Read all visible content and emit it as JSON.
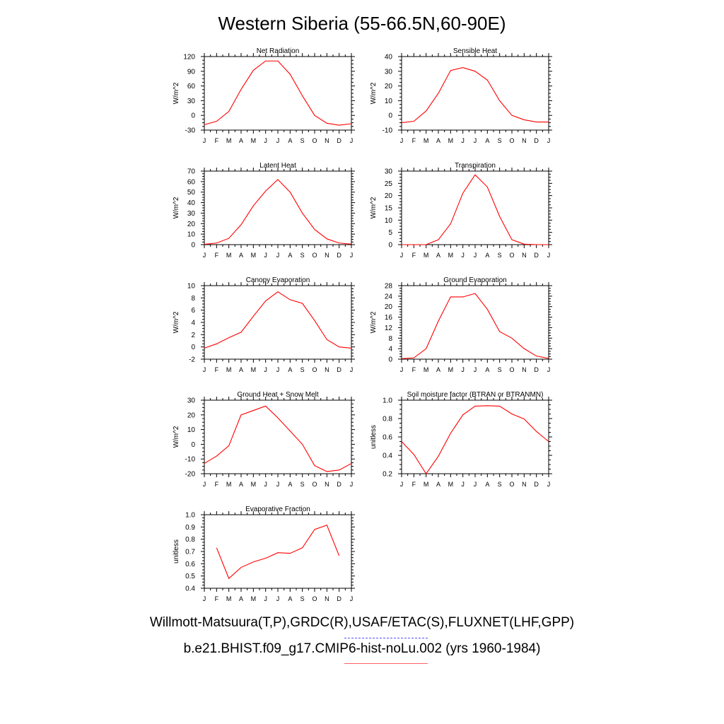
{
  "title": "Western Siberia (55-66.5N,60-90E)",
  "colors": {
    "model": "#ff0000",
    "observed": "#5050ff",
    "axis": "#000000"
  },
  "x_ticks": [
    "J",
    "F",
    "M",
    "A",
    "M",
    "J",
    "J",
    "A",
    "S",
    "O",
    "N",
    "D",
    "J"
  ],
  "legend": {
    "observed": "Willmott-Matsuura(T,P),GRDC(R),USAF/ETAC(S),FLUXNET(LHF,GPP)",
    "model": "b.e21.BHIST.f09_g17.CMIP6-hist-noLu.002 (yrs 1960-1984)"
  },
  "chart_data": [
    {
      "type": "line",
      "title": "Net Radiation",
      "ylabel": "W/m^2",
      "ylim": [
        -30,
        120
      ],
      "yticks": [
        "-30",
        "0",
        "30",
        "60",
        "90",
        "120"
      ],
      "series": [
        {
          "values": [
            -19,
            -12,
            8,
            53,
            92,
            111,
            111,
            84,
            40,
            0,
            -16,
            -20,
            -17
          ]
        }
      ]
    },
    {
      "type": "line",
      "title": "Sensible Heat",
      "ylabel": "W/m^2",
      "ylim": [
        -10,
        40
      ],
      "yticks": [
        "-10",
        "0",
        "10",
        "20",
        "30",
        "40"
      ],
      "series": [
        {
          "values": [
            -5,
            -4,
            3,
            15,
            30.5,
            32.5,
            30,
            24,
            10,
            0,
            -3,
            -4.5,
            -4.5
          ]
        }
      ]
    },
    {
      "type": "line",
      "title": "Latent Heat",
      "ylabel": "W/m^2",
      "ylim": [
        0,
        70
      ],
      "yticks": [
        "0",
        "10",
        "20",
        "30",
        "40",
        "50",
        "60",
        "70"
      ],
      "series": [
        {
          "values": [
            0.3,
            1.5,
            6,
            19,
            37,
            51,
            62,
            50,
            30,
            14.5,
            5.5,
            1.5,
            0.5
          ]
        }
      ]
    },
    {
      "type": "line",
      "title": "Transpiration",
      "ylabel": "W/m^2",
      "ylim": [
        0,
        30
      ],
      "yticks": [
        "0",
        "5",
        "10",
        "15",
        "20",
        "25",
        "30"
      ],
      "series": [
        {
          "values": [
            0,
            0,
            0,
            2,
            8.5,
            21,
            28.5,
            23.5,
            11.5,
            2,
            0.2,
            0,
            0
          ]
        }
      ]
    },
    {
      "type": "line",
      "title": "Canopy Evaporation",
      "ylabel": "W/m^2",
      "ylim": [
        -2,
        10
      ],
      "yticks": [
        "-2",
        "0",
        "2",
        "4",
        "6",
        "8",
        "10"
      ],
      "series": [
        {
          "values": [
            -0.2,
            0.5,
            1.5,
            2.4,
            5,
            7.5,
            9,
            7.7,
            7.1,
            4.3,
            1.2,
            0,
            -0.2
          ]
        }
      ]
    },
    {
      "type": "line",
      "title": "Ground Evaporation",
      "ylabel": "W/m^2",
      "ylim": [
        0,
        28
      ],
      "yticks": [
        "0",
        "4",
        "8",
        "12",
        "16",
        "20",
        "24",
        "28"
      ],
      "series": [
        {
          "values": [
            0.2,
            0.5,
            4,
            14.5,
            23.7,
            23.7,
            25,
            19,
            10.5,
            8,
            4,
            1.2,
            0.3
          ]
        }
      ]
    },
    {
      "type": "line",
      "title": "Ground Heat + Snow Melt",
      "ylabel": "W/m^2",
      "ylim": [
        -20,
        30
      ],
      "yticks": [
        "-20",
        "-10",
        "0",
        "10",
        "20",
        "30"
      ],
      "series": [
        {
          "values": [
            -13,
            -8,
            -1,
            20,
            23,
            26,
            18,
            9,
            0,
            -14.5,
            -18.5,
            -17.5,
            -13
          ]
        }
      ]
    },
    {
      "type": "line",
      "title": "Soil moisture factor (BTRAN or BTRANMN)",
      "ylabel": "unitless",
      "ylim": [
        0.2,
        1.0
      ],
      "yticks": [
        "0.2",
        "0.4",
        "0.6",
        "0.8",
        "1.0"
      ],
      "series": [
        {
          "values": [
            0.55,
            0.41,
            0.2,
            0.39,
            0.64,
            0.84,
            0.935,
            0.94,
            0.935,
            0.85,
            0.795,
            0.66,
            0.55
          ]
        }
      ]
    },
    {
      "type": "line",
      "title": "Evaporative Fraction",
      "ylabel": "unitless",
      "ylim": [
        0.4,
        1.0
      ],
      "yticks": [
        "0.4",
        "0.5",
        "0.6",
        "0.7",
        "0.8",
        "0.9",
        "1.0"
      ],
      "series": [
        {
          "values": [
            null,
            0.73,
            0.48,
            0.57,
            0.615,
            0.645,
            0.69,
            0.685,
            0.73,
            0.88,
            0.915,
            0.665,
            null
          ]
        }
      ]
    }
  ]
}
